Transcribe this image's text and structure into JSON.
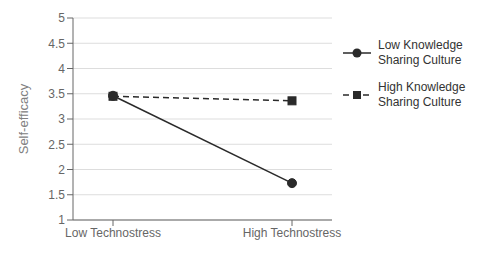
{
  "chart_data": {
    "type": "line",
    "categories": [
      "Low Technostress",
      "High Technostress"
    ],
    "series": [
      {
        "name": "Low Knowledge\nSharing Culture",
        "color": "#2a2a2a",
        "values": [
          3.46,
          1.73
        ],
        "marker": "circle",
        "line_style": "solid"
      },
      {
        "name": "High Knowledge\nSharing Culture",
        "color": "#2a2a2a",
        "values": [
          3.45,
          3.36
        ],
        "marker": "square",
        "line_style": "dashed"
      }
    ],
    "y_label": "Self-efficacy",
    "ylim": [
      1,
      5
    ],
    "yticks": [
      1,
      1.5,
      2,
      2.5,
      3,
      3.5,
      4,
      4.5,
      5
    ],
    "grid": true,
    "legend": "right"
  }
}
